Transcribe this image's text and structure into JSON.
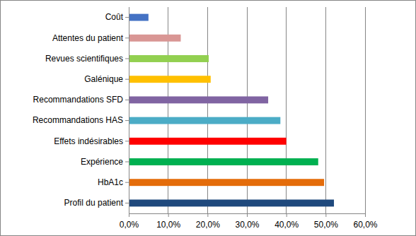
{
  "chart_data": {
    "type": "bar",
    "orientation": "horizontal",
    "categories": [
      "Coût",
      "Attentes du patient",
      "Revues scientifiques",
      "Galénique",
      "Recommandations SFD",
      "Recommandations HAS",
      "Effets indésirables",
      "Expérience",
      "HbA1c",
      "Profil du patient"
    ],
    "values": [
      5.0,
      13.2,
      20.3,
      20.8,
      35.4,
      38.5,
      40.0,
      48.1,
      49.6,
      52.1
    ],
    "colors": [
      "#4472c4",
      "#d99694",
      "#92d050",
      "#ffc000",
      "#8064a2",
      "#4bacc6",
      "#ff0000",
      "#00b050",
      "#e46c0a",
      "#1f497d"
    ],
    "xlim": [
      0,
      60
    ],
    "xticks": [
      {
        "value": 0,
        "label": "0,0%"
      },
      {
        "value": 10,
        "label": "10,0%"
      },
      {
        "value": 20,
        "label": "20,0%"
      },
      {
        "value": 30,
        "label": "30,0%"
      },
      {
        "value": 40,
        "label": "40,0%"
      },
      {
        "value": 50,
        "label": "50,0%"
      },
      {
        "value": 60,
        "label": "60,0%"
      }
    ],
    "grid": true
  }
}
